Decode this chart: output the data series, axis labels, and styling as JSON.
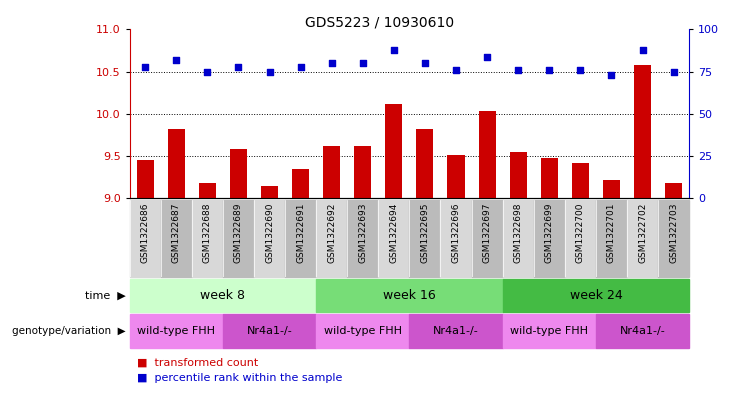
{
  "title": "GDS5223 / 10930610",
  "samples": [
    "GSM1322686",
    "GSM1322687",
    "GSM1322688",
    "GSM1322689",
    "GSM1322690",
    "GSM1322691",
    "GSM1322692",
    "GSM1322693",
    "GSM1322694",
    "GSM1322695",
    "GSM1322696",
    "GSM1322697",
    "GSM1322698",
    "GSM1322699",
    "GSM1322700",
    "GSM1322701",
    "GSM1322702",
    "GSM1322703"
  ],
  "transformed_count": [
    9.45,
    9.82,
    9.18,
    9.58,
    9.15,
    9.35,
    9.62,
    9.62,
    10.12,
    9.82,
    9.52,
    10.03,
    9.55,
    9.48,
    9.42,
    9.22,
    10.58,
    9.18
  ],
  "percentile_rank": [
    78,
    82,
    75,
    78,
    75,
    78,
    80,
    80,
    88,
    80,
    76,
    84,
    76,
    76,
    76,
    73,
    88,
    75
  ],
  "bar_color": "#cc0000",
  "dot_color": "#0000cc",
  "ylim_left": [
    9,
    11
  ],
  "ylim_right": [
    0,
    100
  ],
  "yticks_left": [
    9,
    9.5,
    10,
    10.5,
    11
  ],
  "yticks_right": [
    0,
    25,
    50,
    75,
    100
  ],
  "grid_dotted_values": [
    9.5,
    10,
    10.5
  ],
  "time_colors": [
    "#ccffcc",
    "#77dd77",
    "#44bb44"
  ],
  "time_labels": [
    "week 8",
    "week 16",
    "week 24"
  ],
  "time_boundaries": [
    0,
    6,
    12,
    18
  ],
  "genotype_colors_alt": [
    "#ee88ee",
    "#cc55cc"
  ],
  "genotype_labels": [
    "wild-type FHH",
    "Nr4a1-/-",
    "wild-type FHH",
    "Nr4a1-/-",
    "wild-type FHH",
    "Nr4a1-/-"
  ],
  "genotype_boundaries": [
    0,
    3,
    6,
    9,
    12,
    15,
    18
  ],
  "genotype_colors": [
    "#ee88ee",
    "#cc55cc",
    "#ee88ee",
    "#cc55cc",
    "#ee88ee",
    "#cc55cc"
  ],
  "legend_bar_label": "transformed count",
  "legend_dot_label": "percentile rank within the sample",
  "xlabel_time": "time",
  "xlabel_genotype": "genotype/variation",
  "col_colors_even": "#d8d8d8",
  "col_colors_odd": "#bbbbbb"
}
